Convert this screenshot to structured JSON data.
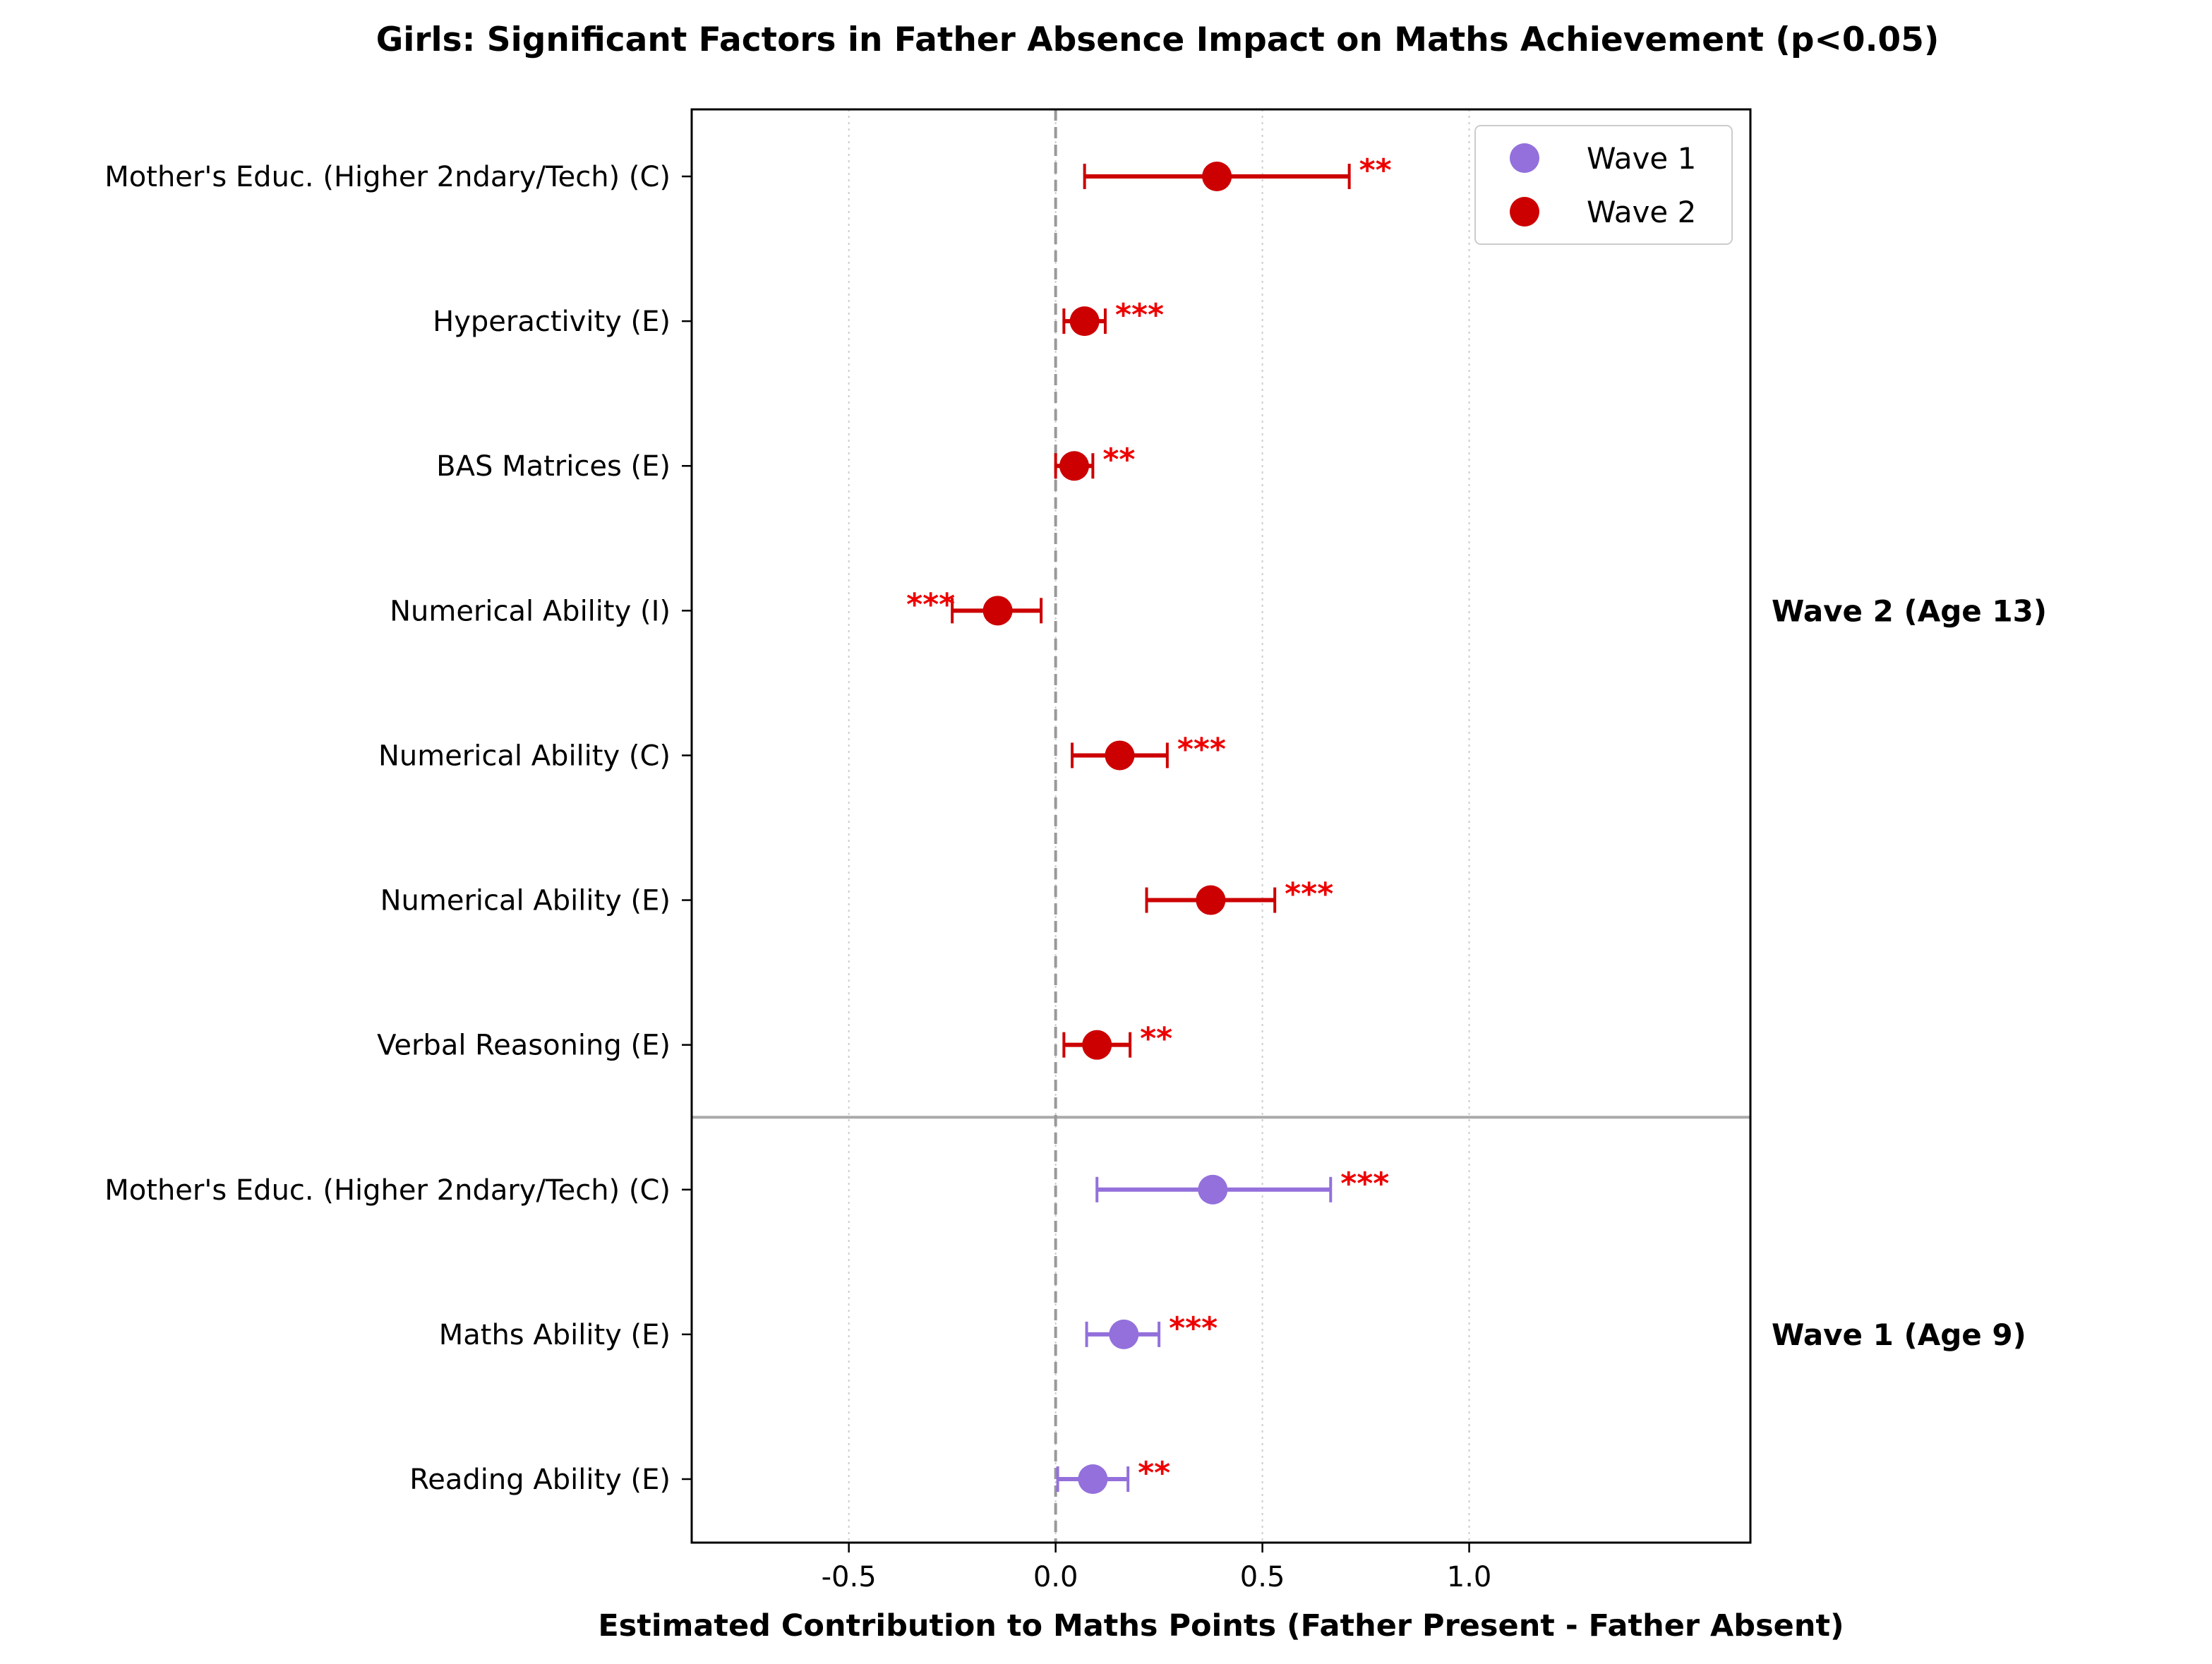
{
  "chart_data": {
    "type": "scatter",
    "title": "Girls: Significant Factors in Father Absence Impact on Maths Achievement (p<0.05)",
    "xlabel": "Estimated Contribution to Maths Points (Father Present - Father Absent)",
    "ylabel": "",
    "xlim": [
      -0.88,
      1.68
    ],
    "xticks": [
      -0.5,
      0.0,
      0.5,
      1.0
    ],
    "xtick_labels": [
      "-0.5",
      "0.0",
      "0.5",
      "1.0"
    ],
    "grid": "x-dotted",
    "reference_line": {
      "x": 0,
      "style": "dashed"
    },
    "legend": {
      "placement": "top-right",
      "entries": [
        {
          "label": "Wave 1",
          "color": "#9370db"
        },
        {
          "label": "Wave 2",
          "color": "#cc0000"
        }
      ]
    },
    "significance_color": "#ee0000",
    "groups": [
      {
        "label": "Wave 2 (Age 13)",
        "series": "Wave 2",
        "color": "#cc0000",
        "points": [
          {
            "label": "Mother's Educ. (Higher 2ndary/Tech) (C)",
            "value": 0.39,
            "ci_low": 0.07,
            "ci_high": 0.71,
            "sig": "**"
          },
          {
            "label": "Hyperactivity (E)",
            "value": 0.07,
            "ci_low": 0.02,
            "ci_high": 0.12,
            "sig": "***"
          },
          {
            "label": "BAS Matrices (E)",
            "value": 0.045,
            "ci_low": 0.0,
            "ci_high": 0.09,
            "sig": "**"
          },
          {
            "label": "Numerical Ability (I)",
            "value": -0.14,
            "ci_low": -0.25,
            "ci_high": -0.035,
            "sig": "***"
          },
          {
            "label": "Numerical Ability (C)",
            "value": 0.155,
            "ci_low": 0.04,
            "ci_high": 0.27,
            "sig": "***"
          },
          {
            "label": "Numerical Ability (E)",
            "value": 0.375,
            "ci_low": 0.22,
            "ci_high": 0.53,
            "sig": "***"
          },
          {
            "label": "Verbal Reasoning (E)",
            "value": 0.1,
            "ci_low": 0.02,
            "ci_high": 0.18,
            "sig": "**"
          }
        ]
      },
      {
        "label": "Wave 1 (Age 9)",
        "series": "Wave 1",
        "color": "#9370db",
        "points": [
          {
            "label": "Mother's Educ. (Higher 2ndary/Tech) (C)",
            "value": 0.38,
            "ci_low": 0.1,
            "ci_high": 0.665,
            "sig": "***"
          },
          {
            "label": "Maths Ability (E)",
            "value": 0.165,
            "ci_low": 0.075,
            "ci_high": 0.25,
            "sig": "***"
          },
          {
            "label": "Reading Ability (E)",
            "value": 0.09,
            "ci_low": 0.005,
            "ci_high": 0.175,
            "sig": "**"
          }
        ]
      }
    ]
  }
}
